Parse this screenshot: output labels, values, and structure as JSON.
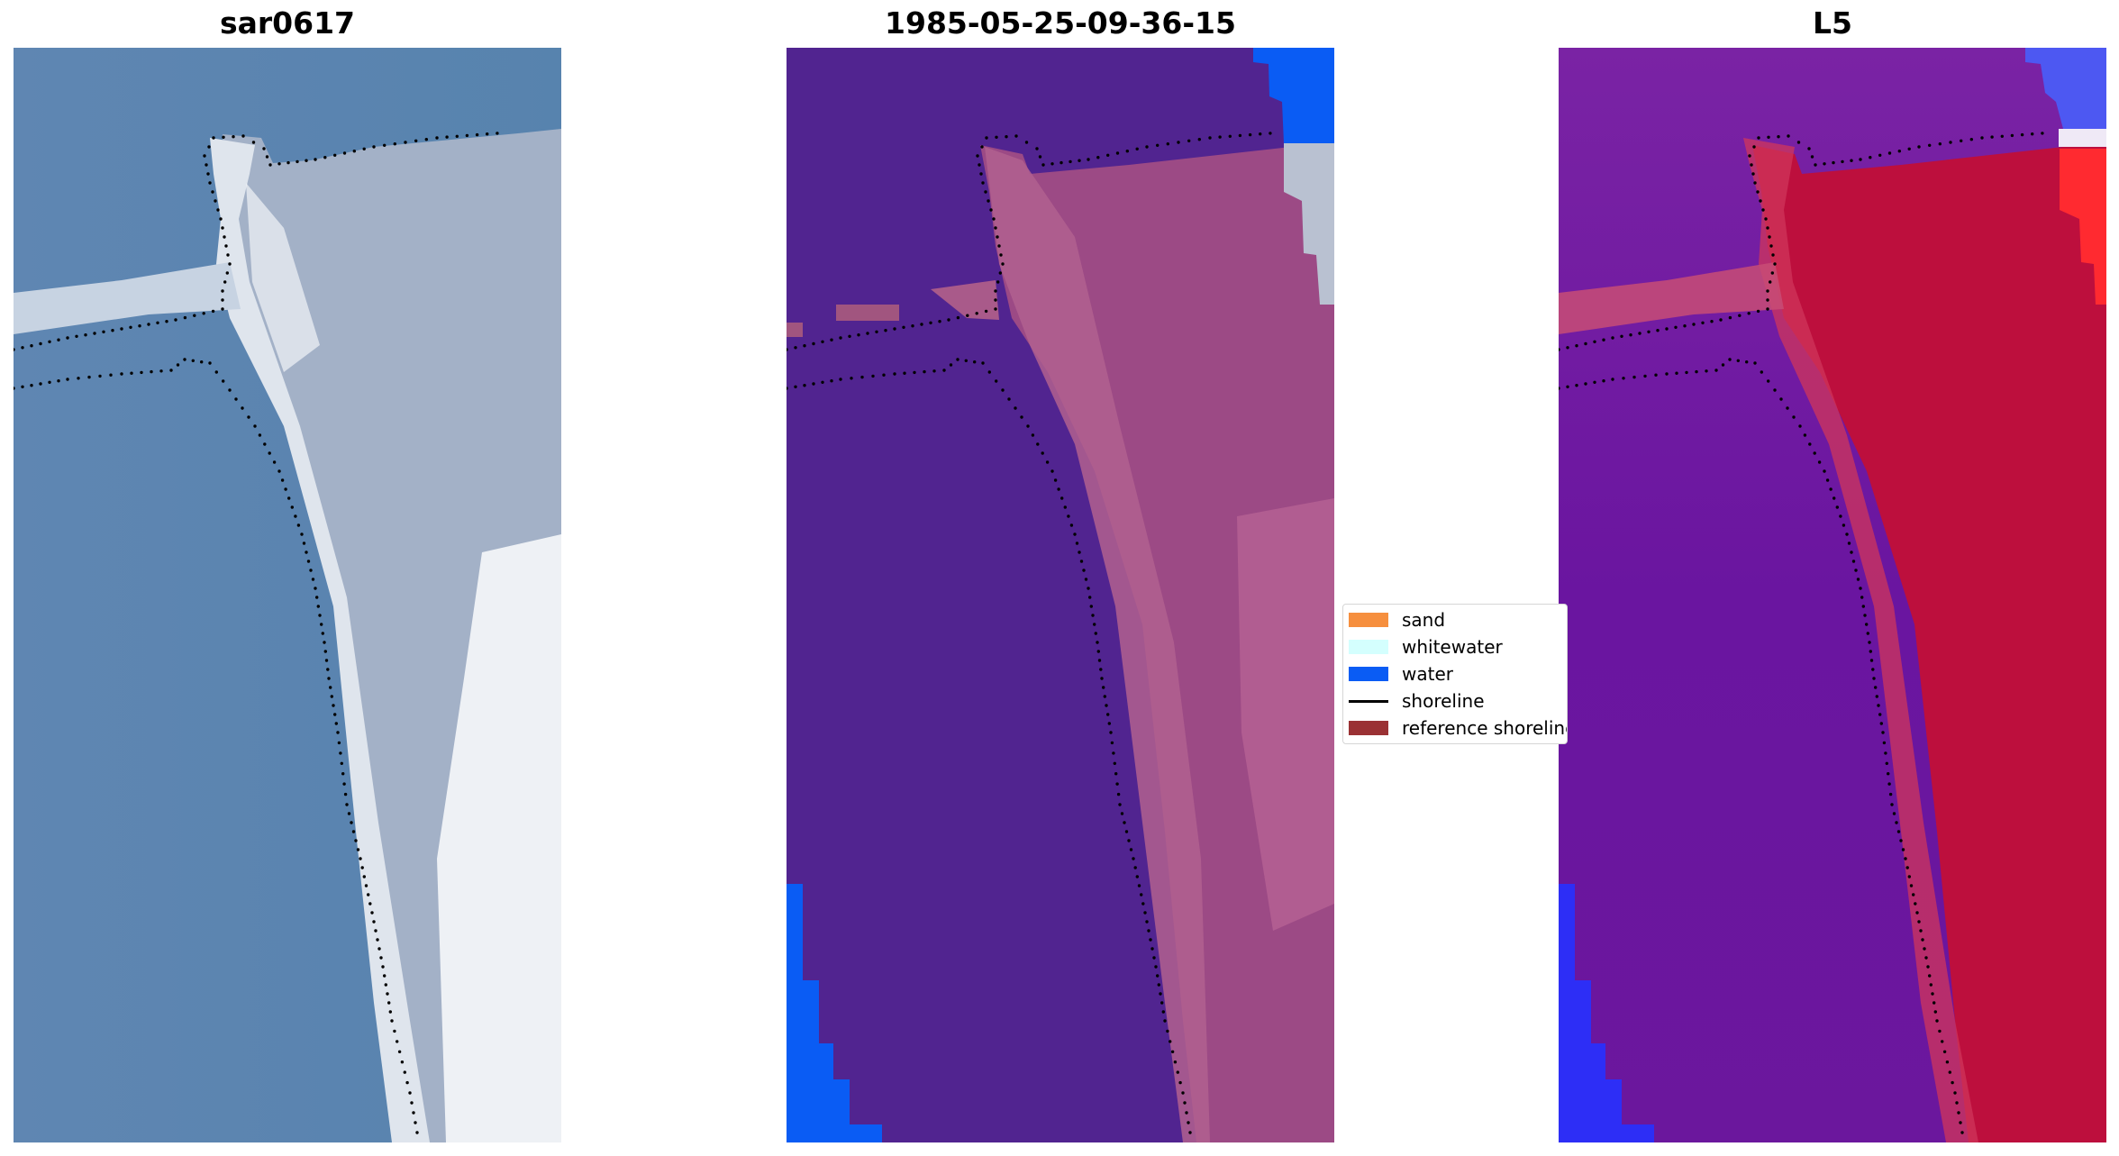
{
  "panels": [
    {
      "title": "sar0617",
      "kind": "rgb"
    },
    {
      "title": "1985-05-25-09-36-15",
      "kind": "classified"
    },
    {
      "title": "L5",
      "kind": "index"
    }
  ],
  "legend": {
    "items": [
      {
        "label": "sand",
        "color": "#f68f3e",
        "kind": "patch"
      },
      {
        "label": "whitewater",
        "color": "#d4fffe",
        "kind": "patch"
      },
      {
        "label": "water",
        "color": "#0a5cf4",
        "kind": "patch"
      },
      {
        "label": "shoreline",
        "color": "#000000",
        "kind": "line"
      },
      {
        "label": "reference shoreline",
        "color": "#9a3134",
        "kind": "patch"
      }
    ]
  },
  "colors": {
    "rgb_water": "#5a83b0",
    "rgb_beach": "#dde4ec",
    "rgb_land": "#9fadc4",
    "class_water": "#512490",
    "class_sand": "#a75f90",
    "class_water_blue": "#0a5cf4",
    "class_whitewater": "#b4bccb",
    "index_low": "#6b1aa0",
    "index_high": "#c10a3a",
    "index_blue": "#3e45f0",
    "shoreline": "#000000"
  }
}
